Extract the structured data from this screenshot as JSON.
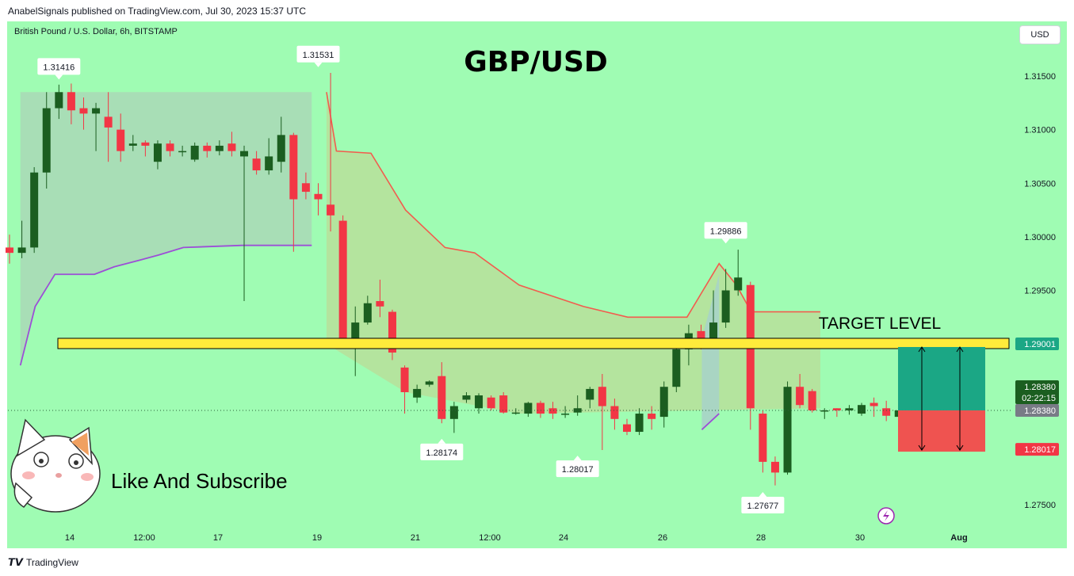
{
  "header": {
    "published": "AnabelSignals published on TradingView.com, Jul 30, 2023 15:37 UTC"
  },
  "symbol_label": "British Pound / U.S. Dollar, 6h, BITSTAMP",
  "currency_button": "USD",
  "footer": {
    "logo": "TradingView"
  },
  "colors": {
    "background": "#9ffcb3",
    "up": "#1b5e20",
    "down": "#f23645",
    "target": "#ffeb3b",
    "profit": "#1ba785",
    "loss": "#ef5350",
    "stop_line": "#f25c4e",
    "trail_line": "#9c4fd6"
  },
  "chart_data": {
    "type": "candlestick",
    "title": "GBP/USD",
    "ylim": [
      1.272,
      1.319
    ],
    "y_ticks": [
      "1.31500",
      "1.31000",
      "1.30500",
      "1.30000",
      "1.29500",
      "1.27500"
    ],
    "x_ticks": [
      "14",
      "12:00",
      "17",
      "19",
      "21",
      "12:00",
      "24",
      "26",
      "28",
      "30",
      "Aug"
    ],
    "annotations": {
      "highs_lows": [
        "1.31416",
        "1.31531",
        "1.28174",
        "1.28017",
        "1.29886",
        "1.27677"
      ],
      "target_label": "TARGET LEVEL",
      "subscribe_text": "Like And Subscribe"
    },
    "price_labels": {
      "target": "1.29001",
      "current": "1.28380",
      "countdown": "02:22:15",
      "current_line": "1.28380",
      "stop": "1.28017"
    },
    "target_level": 1.29001,
    "current_price": 1.2838,
    "stop_level": 1.28017,
    "candles": [
      [
        1.299,
        1.2985,
        1.3002,
        1.2975
      ],
      [
        1.2985,
        1.299,
        1.3015,
        1.298
      ],
      [
        1.299,
        1.306,
        1.3065,
        1.2985
      ],
      [
        1.306,
        1.312,
        1.3135,
        1.3045
      ],
      [
        1.312,
        1.3135,
        1.3142,
        1.311
      ],
      [
        1.3135,
        1.3118,
        1.3143,
        1.3105
      ],
      [
        1.312,
        1.3115,
        1.313,
        1.31
      ],
      [
        1.3115,
        1.312,
        1.3125,
        1.308
      ],
      [
        1.3112,
        1.3102,
        1.3135,
        1.307
      ],
      [
        1.31,
        1.308,
        1.3115,
        1.307
      ],
      [
        1.3085,
        1.3087,
        1.3095,
        1.308
      ],
      [
        1.3088,
        1.3085,
        1.309,
        1.3075
      ],
      [
        1.307,
        1.3087,
        1.309,
        1.3063
      ],
      [
        1.3087,
        1.308,
        1.309,
        1.3075
      ],
      [
        1.308,
        1.308,
        1.3085,
        1.3075
      ],
      [
        1.3072,
        1.3085,
        1.3088,
        1.307
      ],
      [
        1.3085,
        1.308,
        1.3088,
        1.3074
      ],
      [
        1.308,
        1.3085,
        1.309,
        1.3076
      ],
      [
        1.3087,
        1.308,
        1.3098,
        1.3075
      ],
      [
        1.3075,
        1.308,
        1.3085,
        1.294
      ],
      [
        1.3073,
        1.3062,
        1.308,
        1.3058
      ],
      [
        1.3062,
        1.3075,
        1.3092,
        1.3058
      ],
      [
        1.307,
        1.3095,
        1.3112,
        1.306
      ],
      [
        1.3095,
        1.3035,
        1.3097,
        1.2986
      ],
      [
        1.305,
        1.3042,
        1.306,
        1.3035
      ],
      [
        1.304,
        1.3035,
        1.305,
        1.302
      ],
      [
        1.303,
        1.302,
        1.3153,
        1.3005
      ],
      [
        1.3015,
        1.29,
        1.302,
        1.2898
      ],
      [
        1.29,
        1.292,
        1.2935,
        1.287
      ],
      [
        1.292,
        1.2938,
        1.2945,
        1.2918
      ],
      [
        1.294,
        1.2935,
        1.296,
        1.2925
      ],
      [
        1.293,
        1.2892,
        1.2932,
        1.2885
      ],
      [
        1.2878,
        1.2855,
        1.288,
        1.2835
      ],
      [
        1.285,
        1.2858,
        1.2862,
        1.2845
      ],
      [
        1.2862,
        1.2865,
        1.2866,
        1.286
      ],
      [
        1.287,
        1.283,
        1.2883,
        1.2826
      ],
      [
        1.283,
        1.2842,
        1.2846,
        1.2817
      ],
      [
        1.2848,
        1.2852,
        1.2855,
        1.2845
      ],
      [
        1.284,
        1.2852,
        1.2854,
        1.2835
      ],
      [
        1.285,
        1.284,
        1.2852,
        1.2838
      ],
      [
        1.2852,
        1.2836,
        1.2855,
        1.2835
      ],
      [
        1.2835,
        1.2836,
        1.284,
        1.2834
      ],
      [
        1.2835,
        1.2845,
        1.2846,
        1.2832
      ],
      [
        1.2845,
        1.2835,
        1.2847,
        1.2831
      ],
      [
        1.284,
        1.2835,
        1.2846,
        1.283
      ],
      [
        1.2835,
        1.2835,
        1.2842,
        1.2831
      ],
      [
        1.2836,
        1.284,
        1.2852,
        1.2833
      ],
      [
        1.2848,
        1.2858,
        1.286,
        1.284
      ],
      [
        1.286,
        1.2842,
        1.2872,
        1.2801
      ],
      [
        1.2842,
        1.283,
        1.2849,
        1.282
      ],
      [
        1.2825,
        1.2818,
        1.283,
        1.2815
      ],
      [
        1.2818,
        1.2835,
        1.284,
        1.2815
      ],
      [
        1.2835,
        1.283,
        1.2842,
        1.282
      ],
      [
        1.2832,
        1.286,
        1.2865,
        1.2822
      ],
      [
        1.286,
        1.2895,
        1.2898,
        1.2855
      ],
      [
        1.2895,
        1.291,
        1.2918,
        1.288
      ],
      [
        1.2912,
        1.2905,
        1.2918,
        1.2895
      ],
      [
        1.2905,
        1.292,
        1.295,
        1.29
      ],
      [
        1.292,
        1.295,
        1.297,
        1.2915
      ],
      [
        1.295,
        1.2962,
        1.2988,
        1.2945
      ],
      [
        1.2955,
        1.284,
        1.2958,
        1.282
      ],
      [
        1.2835,
        1.279,
        1.2838,
        1.278
      ],
      [
        1.279,
        1.278,
        1.2795,
        1.2768
      ],
      [
        1.278,
        1.286,
        1.2865,
        1.2778
      ],
      [
        1.286,
        1.2843,
        1.2872,
        1.284
      ],
      [
        1.2856,
        1.2838,
        1.2858,
        1.2836
      ],
      [
        1.2838,
        1.2838,
        1.284,
        1.283
      ],
      [
        1.284,
        1.2838,
        1.284,
        1.2832
      ],
      [
        1.2838,
        1.284,
        1.2843,
        1.2834
      ],
      [
        1.2835,
        1.2843,
        1.2845,
        1.2833
      ],
      [
        1.2845,
        1.2842,
        1.285,
        1.2832
      ],
      [
        1.284,
        1.2833,
        1.2847,
        1.2828
      ],
      [
        1.2832,
        1.2838,
        1.2845,
        1.2815
      ]
    ],
    "stop_line": [
      [
        19.2,
        1.3135
      ],
      [
        19.4,
        1.308
      ],
      [
        20.1,
        1.3078
      ],
      [
        20.8,
        1.3025
      ],
      [
        21.6,
        1.299
      ],
      [
        22.2,
        1.2985
      ],
      [
        23.1,
        1.2955
      ],
      [
        24.4,
        1.2935
      ],
      [
        25.3,
        1.2925
      ],
      [
        26.5,
        1.2925
      ],
      [
        27.15,
        1.2975
      ],
      [
        27.5,
        1.2955
      ],
      [
        27.8,
        1.293
      ],
      [
        29.2,
        1.293
      ]
    ],
    "trail_line": [
      [
        13.0,
        1.288
      ],
      [
        13.3,
        1.2935
      ],
      [
        13.7,
        1.2965
      ],
      [
        14.5,
        1.2965
      ],
      [
        14.9,
        1.2972
      ],
      [
        15.4,
        1.2978
      ],
      [
        15.8,
        1.2983
      ],
      [
        16.3,
        1.299
      ],
      [
        17.5,
        1.2992
      ],
      [
        18.9,
        1.2992
      ]
    ],
    "trail_line_2": [
      [
        26.8,
        1.282
      ],
      [
        27.15,
        1.2835
      ]
    ]
  }
}
